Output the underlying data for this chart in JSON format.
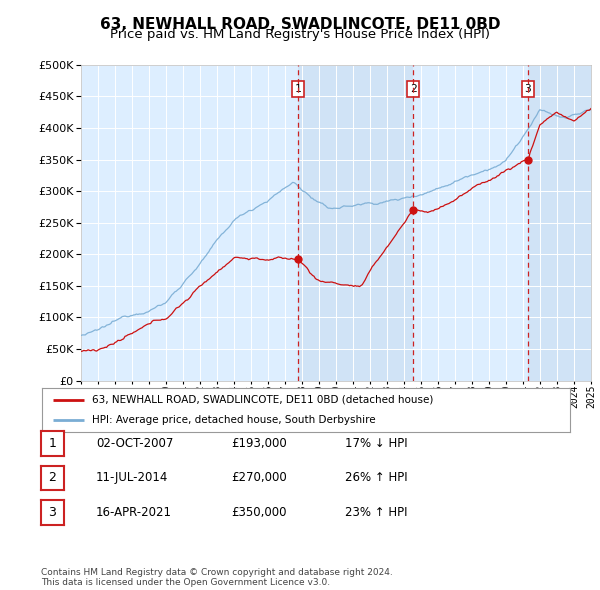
{
  "title": "63, NEWHALL ROAD, SWADLINCOTE, DE11 0BD",
  "subtitle": "Price paid vs. HM Land Registry's House Price Index (HPI)",
  "title_fontsize": 11,
  "subtitle_fontsize": 9.5,
  "background_color": "#ffffff",
  "plot_bg_color": "#ddeeff",
  "plot_bg_highlight": "#c8ddf0",
  "grid_color": "#ffffff",
  "x_start_year": 1995,
  "x_end_year": 2025,
  "y_min": 0,
  "y_max": 500000,
  "y_ticks": [
    0,
    50000,
    100000,
    150000,
    200000,
    250000,
    300000,
    350000,
    400000,
    450000,
    500000
  ],
  "hpi_line_color": "#7aadd4",
  "price_line_color": "#cc1111",
  "sale_points": [
    {
      "year": 2007.75,
      "price": 193000,
      "label": "1"
    },
    {
      "year": 2014.53,
      "price": 270000,
      "label": "2"
    },
    {
      "year": 2021.29,
      "price": 350000,
      "label": "3"
    }
  ],
  "vline_color": "#cc2222",
  "legend_label_price": "63, NEWHALL ROAD, SWADLINCOTE, DE11 0BD (detached house)",
  "legend_label_hpi": "HPI: Average price, detached house, South Derbyshire",
  "table_data": [
    {
      "num": "1",
      "date": "02-OCT-2007",
      "price": "£193,000",
      "change": "17% ↓ HPI"
    },
    {
      "num": "2",
      "date": "11-JUL-2014",
      "price": "£270,000",
      "change": "26% ↑ HPI"
    },
    {
      "num": "3",
      "date": "16-APR-2021",
      "price": "£350,000",
      "change": "23% ↑ HPI"
    }
  ],
  "footer_text": "Contains HM Land Registry data © Crown copyright and database right 2024.\nThis data is licensed under the Open Government Licence v3.0."
}
